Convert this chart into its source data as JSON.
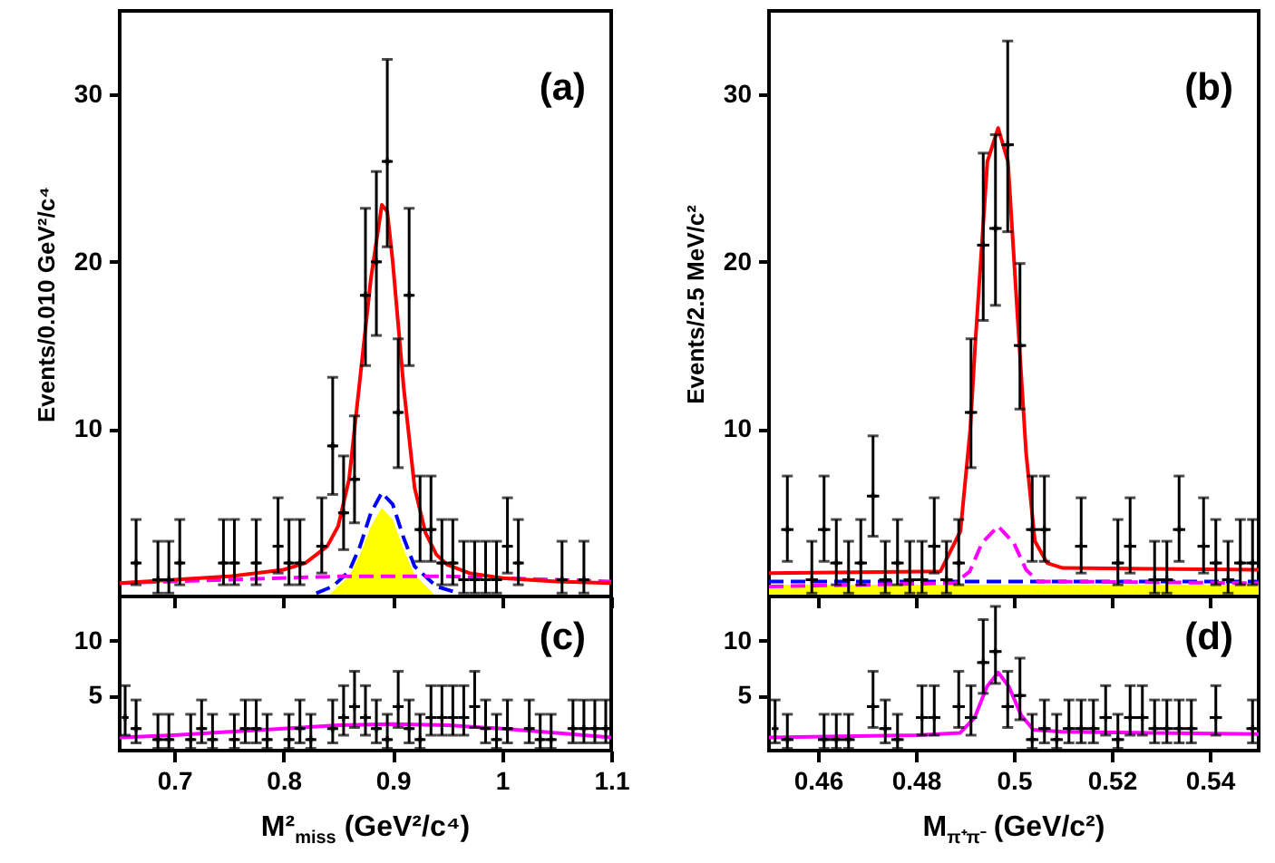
{
  "chart_data": [
    {
      "type": "scatter",
      "ylabel": "Events/0.010 GeV²/c⁴",
      "annotations": [
        "(a)"
      ],
      "xlim": [
        0.65,
        1.1
      ],
      "xticks": [
        0.7,
        0.8,
        0.9,
        1,
        1.1
      ],
      "ylim": [
        0,
        35
      ],
      "yticks": [
        10,
        20,
        30
      ],
      "tick_labels": "y",
      "series": [
        {
          "type": "area",
          "color": "#ffff00",
          "x": [
            0.84,
            0.86,
            0.87,
            0.88,
            0.89,
            0.9,
            0.91,
            0.92,
            0.94
          ],
          "values": [
            0,
            1.2,
            2.5,
            4.2,
            5.3,
            4.6,
            2.8,
            1.3,
            0
          ]
        },
        {
          "type": "line",
          "color": "#0000ff",
          "line_style": "dashed",
          "x": [
            0.83,
            0.845,
            0.86,
            0.87,
            0.88,
            0.89,
            0.9,
            0.91,
            0.92,
            0.94,
            0.96
          ],
          "values": [
            0.2,
            0.6,
            1.5,
            3,
            5,
            6.2,
            5.5,
            3.5,
            1.8,
            0.6,
            0.2
          ]
        },
        {
          "type": "line",
          "color": "#ff00ff",
          "line_style": "dashed",
          "x": [
            0.65,
            0.75,
            0.85,
            0.95,
            1.05,
            1.1
          ],
          "values": [
            0.8,
            1,
            1.2,
            1.2,
            1,
            0.9
          ]
        },
        {
          "type": "line",
          "color": "#ff0000",
          "line_style": "solid",
          "x": [
            0.65,
            0.7,
            0.75,
            0.8,
            0.82,
            0.84,
            0.85,
            0.86,
            0.87,
            0.88,
            0.89,
            0.895,
            0.9,
            0.91,
            0.92,
            0.93,
            0.94,
            0.95,
            0.97,
            1,
            1.05,
            1.1
          ],
          "values": [
            0.8,
            1,
            1.2,
            1.6,
            2,
            3,
            4.2,
            7,
            13,
            19,
            23.4,
            23,
            20,
            12.5,
            6.5,
            3.8,
            2.5,
            1.9,
            1.4,
            1.1,
            0.9,
            0.8
          ]
        },
        {
          "type": "scatter",
          "color": "#000000",
          "marker": "cross",
          "x": [
            0.665,
            0.685,
            0.695,
            0.705,
            0.745,
            0.755,
            0.775,
            0.795,
            0.805,
            0.815,
            0.835,
            0.845,
            0.855,
            0.865,
            0.875,
            0.885,
            0.895,
            0.905,
            0.915,
            0.925,
            0.935,
            0.945,
            0.955,
            0.965,
            0.975,
            0.985,
            0.995,
            1.005,
            1.015,
            1.055,
            1.075
          ],
          "values": [
            2,
            1,
            1,
            2,
            2,
            2,
            2,
            3,
            2,
            2,
            3,
            9,
            5,
            7,
            18,
            20,
            26,
            11,
            18,
            4,
            4,
            2,
            2,
            1,
            1,
            1,
            1,
            3,
            2,
            1,
            1
          ],
          "errors": [
            [
              0.7,
              4.6
            ],
            [
              0.2,
              3.3
            ],
            [
              0.2,
              3.3
            ],
            [
              0.7,
              4.6
            ],
            [
              0.7,
              4.6
            ],
            [
              0.7,
              4.6
            ],
            [
              0.7,
              4.6
            ],
            [
              1.4,
              5.9
            ],
            [
              0.7,
              4.6
            ],
            [
              0.7,
              4.6
            ],
            [
              1.4,
              5.9
            ],
            [
              6.1,
              13.1
            ],
            [
              2.8,
              8.4
            ],
            [
              4.4,
              10.8
            ],
            [
              13.8,
              23.2
            ],
            [
              15.6,
              25.4
            ],
            [
              20.9,
              32.1
            ],
            [
              7.7,
              15.4
            ],
            [
              13.8,
              23.2
            ],
            [
              2.1,
              7.2
            ],
            [
              2.1,
              7.2
            ],
            [
              0.7,
              4.6
            ],
            [
              0.7,
              4.6
            ],
            [
              0.2,
              3.3
            ],
            [
              0.2,
              3.3
            ],
            [
              0.2,
              3.3
            ],
            [
              0.2,
              3.3
            ],
            [
              1.4,
              5.9
            ],
            [
              0.7,
              4.6
            ],
            [
              0.2,
              3.3
            ],
            [
              0.2,
              3.3
            ]
          ],
          "xerrors": [
            0.005,
            0.005,
            0.005,
            0.005,
            0.005,
            0.005,
            0.005,
            0.005,
            0.005,
            0.005,
            0.005,
            0.005,
            0.005,
            0.005,
            0.005,
            0.005,
            0.005,
            0.005,
            0.005,
            0.005,
            0.005,
            0.005,
            0.005,
            0.005,
            0.005,
            0.005,
            0.005,
            0.005,
            0.005,
            0.005,
            0.005
          ]
        }
      ]
    },
    {
      "type": "scatter",
      "ylabel": "Events/2.5 MeV/c²",
      "annotations": [
        "(b)"
      ],
      "xlim": [
        0.45,
        0.55
      ],
      "xticks": [
        0.46,
        0.48,
        0.5,
        0.52,
        0.54
      ],
      "ylim": [
        0,
        35
      ],
      "yticks": [
        10,
        20,
        30
      ],
      "tick_labels": "y",
      "series": [
        {
          "type": "area",
          "color": "#ffff00",
          "x": [
            0.45,
            0.55
          ],
          "values": [
            0.7,
            0.7
          ]
        },
        {
          "type": "line",
          "color": "#0000ff",
          "line_style": "dashed",
          "x": [
            0.45,
            0.55
          ],
          "values": [
            0.9,
            0.9
          ]
        },
        {
          "type": "line",
          "color": "#ff00ff",
          "line_style": "dashed",
          "x": [
            0.45,
            0.488,
            0.491,
            0.4935,
            0.4968,
            0.5,
            0.5025,
            0.505,
            0.55
          ],
          "values": [
            0.6,
            0.8,
            1.5,
            3.2,
            4.2,
            3.2,
            1.6,
            0.9,
            0.8
          ]
        },
        {
          "type": "line",
          "color": "#ff0000",
          "line_style": "solid",
          "x": [
            0.45,
            0.485,
            0.4891,
            0.4911,
            0.4921,
            0.4946,
            0.4968,
            0.4988,
            0.5007,
            0.5025,
            0.5043,
            0.5068,
            0.51,
            0.55
          ],
          "values": [
            1.4,
            1.5,
            3.9,
            10,
            15,
            26,
            28,
            26,
            17,
            8.6,
            3.3,
            2,
            1.7,
            1.6
          ]
        },
        {
          "type": "scatter",
          "color": "#000000",
          "marker": "cross",
          "x": [
            0.45375,
            0.45875,
            0.46125,
            0.46375,
            0.46625,
            0.46875,
            0.47125,
            0.47375,
            0.47625,
            0.47875,
            0.48125,
            0.48375,
            0.48625,
            0.48875,
            0.49125,
            0.49375,
            0.49625,
            0.49875,
            0.50125,
            0.50375,
            0.50625,
            0.51375,
            0.52125,
            0.52375,
            0.52875,
            0.53125,
            0.53375,
            0.53875,
            0.54125,
            0.54375,
            0.54625,
            0.54875
          ],
          "values": [
            4,
            1,
            4,
            2,
            1,
            2,
            6,
            1,
            2,
            1,
            1,
            3,
            1,
            2,
            11,
            21,
            22,
            27,
            15,
            4,
            4,
            3,
            2,
            3,
            1,
            1,
            4,
            3,
            2,
            1,
            2,
            2
          ],
          "errors": [
            [
              2.1,
              7.2
            ],
            [
              0.2,
              3.3
            ],
            [
              2.1,
              7.2
            ],
            [
              0.7,
              4.6
            ],
            [
              0.2,
              3.3
            ],
            [
              0.7,
              4.6
            ],
            [
              3.6,
              9.6
            ],
            [
              0.2,
              3.3
            ],
            [
              0.7,
              4.6
            ],
            [
              0.2,
              3.3
            ],
            [
              0.2,
              3.3
            ],
            [
              1.4,
              5.9
            ],
            [
              0.2,
              3.3
            ],
            [
              0.7,
              4.6
            ],
            [
              7.7,
              15.4
            ],
            [
              16.5,
              26.5
            ],
            [
              17.4,
              27.6
            ],
            [
              21.8,
              33.2
            ],
            [
              11.2,
              19.9
            ],
            [
              2.1,
              7.2
            ],
            [
              2.1,
              7.2
            ],
            [
              1.4,
              5.9
            ],
            [
              0.7,
              4.6
            ],
            [
              1.4,
              5.9
            ],
            [
              0.2,
              3.3
            ],
            [
              0.2,
              3.3
            ],
            [
              2.1,
              7.2
            ],
            [
              1.4,
              5.9
            ],
            [
              0.7,
              4.6
            ],
            [
              0.2,
              3.3
            ],
            [
              0.7,
              4.6
            ],
            [
              0.7,
              4.6
            ]
          ],
          "xerrors": [
            0.00125,
            0.00125,
            0.00125,
            0.00125,
            0.00125,
            0.00125,
            0.00125,
            0.00125,
            0.00125,
            0.00125,
            0.00125,
            0.00125,
            0.00125,
            0.00125,
            0.00125,
            0.00125,
            0.00125,
            0.00125,
            0.00125,
            0.00125,
            0.00125,
            0.00125,
            0.00125,
            0.00125,
            0.00125,
            0.00125,
            0.00125,
            0.00125,
            0.00125,
            0.00125,
            0.00125,
            0.00125
          ]
        }
      ]
    },
    {
      "type": "scatter",
      "xlabel": "M²$_{miss}$ (GeV²/c⁴)",
      "annotations": [
        "(c)"
      ],
      "xlim": [
        0.65,
        1.1
      ],
      "xticks": [
        0.7,
        0.8,
        0.9,
        1,
        1.1
      ],
      "ylim": [
        0,
        14
      ],
      "yticks": [
        5,
        10
      ],
      "series": [
        {
          "type": "line",
          "color": "#ff00ff",
          "line_style": "solid",
          "x": [
            0.65,
            0.7,
            0.75,
            0.8,
            0.85,
            0.9,
            0.95,
            1,
            1.05,
            1.1
          ],
          "values": [
            1.2,
            1.4,
            1.7,
            2,
            2.3,
            2.4,
            2.3,
            2,
            1.6,
            1.2
          ]
        },
        {
          "type": "scatter",
          "color": "#000000",
          "marker": "cross",
          "x": [
            0.655,
            0.665,
            0.685,
            0.695,
            0.715,
            0.725,
            0.735,
            0.755,
            0.765,
            0.775,
            0.785,
            0.805,
            0.815,
            0.825,
            0.845,
            0.855,
            0.865,
            0.875,
            0.885,
            0.895,
            0.905,
            0.915,
            0.925,
            0.935,
            0.945,
            0.955,
            0.965,
            0.975,
            0.985,
            0.995,
            1.005,
            1.025,
            1.035,
            1.045,
            1.065,
            1.075,
            1.085,
            1.095
          ],
          "values": [
            3,
            2,
            1,
            1,
            1,
            2,
            1,
            1,
            2,
            2,
            1,
            1,
            2,
            1,
            2,
            3,
            4,
            3,
            2,
            1,
            4,
            2,
            1,
            3,
            3,
            3,
            3,
            4,
            2,
            1,
            2,
            2,
            1,
            1,
            2,
            2,
            2,
            2
          ],
          "errors": [
            [
              1.4,
              5.9
            ],
            [
              0.7,
              4.6
            ],
            [
              0.2,
              3.3
            ],
            [
              0.2,
              3.3
            ],
            [
              0.2,
              3.3
            ],
            [
              0.7,
              4.6
            ],
            [
              0.2,
              3.3
            ],
            [
              0.2,
              3.3
            ],
            [
              0.7,
              4.6
            ],
            [
              0.7,
              4.6
            ],
            [
              0.2,
              3.3
            ],
            [
              0.2,
              3.3
            ],
            [
              0.7,
              4.6
            ],
            [
              0.2,
              3.3
            ],
            [
              0.7,
              4.6
            ],
            [
              1.4,
              5.9
            ],
            [
              2.1,
              7.2
            ],
            [
              1.4,
              5.9
            ],
            [
              0.7,
              4.6
            ],
            [
              0.2,
              3.3
            ],
            [
              2.1,
              7.2
            ],
            [
              0.7,
              4.6
            ],
            [
              0.2,
              3.3
            ],
            [
              1.4,
              5.9
            ],
            [
              1.4,
              5.9
            ],
            [
              1.4,
              5.9
            ],
            [
              1.4,
              5.9
            ],
            [
              2.1,
              7.2
            ],
            [
              0.7,
              4.6
            ],
            [
              0.2,
              3.3
            ],
            [
              0.7,
              4.6
            ],
            [
              0.7,
              4.6
            ],
            [
              0.2,
              3.3
            ],
            [
              0.2,
              3.3
            ],
            [
              0.7,
              4.6
            ],
            [
              0.7,
              4.6
            ],
            [
              0.7,
              4.6
            ],
            [
              0.7,
              4.6
            ]
          ],
          "xerrors": [
            null,
            0.005,
            0.005,
            0.005,
            0.005,
            0.005,
            0.005,
            0.005,
            0.005,
            0.005,
            0.005,
            0.005,
            0.005,
            0.005,
            0.005,
            0.005,
            0.005,
            0.005,
            0.005,
            0.005,
            0.005,
            0.005,
            0.005,
            0.005,
            0.005,
            0.005,
            0.005,
            0.005,
            0.005,
            0.005,
            0.005,
            0.005,
            0.005,
            0.005,
            0.005,
            0.005,
            0.005,
            0.005
          ]
        }
      ]
    },
    {
      "type": "scatter",
      "xlabel": "M$_{π⁺π⁻}$ (GeV/c²)",
      "annotations": [
        "(d)"
      ],
      "xlim": [
        0.45,
        0.55
      ],
      "xticks": [
        0.46,
        0.48,
        0.5,
        0.52,
        0.54
      ],
      "ylim": [
        0,
        14
      ],
      "yticks": [
        5,
        10
      ],
      "series": [
        {
          "type": "line",
          "color": "#ff00ff",
          "line_style": "solid",
          "x": [
            0.45,
            0.48,
            0.489,
            0.492,
            0.4945,
            0.4968,
            0.499,
            0.5015,
            0.504,
            0.51,
            0.55
          ],
          "values": [
            1.2,
            1.4,
            1.6,
            3,
            5.8,
            7.1,
            5.8,
            3.2,
            1.9,
            1.7,
            1.5
          ]
        },
        {
          "type": "scatter",
          "color": "#000000",
          "marker": "cross",
          "x": [
            0.45125,
            0.45375,
            0.46125,
            0.46375,
            0.46625,
            0.47125,
            0.47375,
            0.47625,
            0.48125,
            0.48375,
            0.48875,
            0.49125,
            0.49375,
            0.49625,
            0.49875,
            0.50125,
            0.50375,
            0.50625,
            0.50875,
            0.51125,
            0.51375,
            0.51625,
            0.51875,
            0.52125,
            0.52375,
            0.52625,
            0.52875,
            0.53125,
            0.53375,
            0.53625,
            0.54125,
            0.54875
          ],
          "values": [
            2,
            1,
            1,
            1,
            1,
            4,
            2,
            1,
            3,
            3,
            4,
            3,
            8,
            9,
            4,
            5,
            1,
            2,
            1,
            2,
            2,
            2,
            3,
            1,
            3,
            3,
            2,
            2,
            2,
            2,
            3,
            2
          ],
          "errors": [
            [
              0.7,
              4.6
            ],
            [
              0.2,
              3.3
            ],
            [
              0.2,
              3.3
            ],
            [
              0.2,
              3.3
            ],
            [
              0.2,
              3.3
            ],
            [
              2.1,
              7.2
            ],
            [
              0.7,
              4.6
            ],
            [
              0.2,
              3.3
            ],
            [
              1.4,
              5.9
            ],
            [
              1.4,
              5.9
            ],
            [
              2.1,
              7.2
            ],
            [
              1.4,
              5.9
            ],
            [
              5.2,
              11.9
            ],
            [
              6.1,
              13.1
            ],
            [
              2.1,
              7.2
            ],
            [
              2.8,
              8.4
            ],
            [
              0.2,
              3.3
            ],
            [
              0.7,
              4.6
            ],
            [
              0.2,
              3.3
            ],
            [
              0.7,
              4.6
            ],
            [
              0.7,
              4.6
            ],
            [
              0.7,
              4.6
            ],
            [
              1.4,
              5.9
            ],
            [
              0.2,
              3.3
            ],
            [
              1.4,
              5.9
            ],
            [
              1.4,
              5.9
            ],
            [
              0.7,
              4.6
            ],
            [
              0.7,
              4.6
            ],
            [
              0.7,
              4.6
            ],
            [
              0.7,
              4.6
            ],
            [
              1.4,
              5.9
            ],
            [
              0.7,
              4.6
            ]
          ],
          "xerrors": [
            null,
            0.00125,
            0.00125,
            0.00125,
            0.00125,
            0.00125,
            0.00125,
            0.00125,
            0.00125,
            0.00125,
            0.00125,
            0.00125,
            0.00125,
            0.00125,
            0.00125,
            0.00125,
            0.00125,
            0.00125,
            0.00125,
            0.00125,
            0.00125,
            0.00125,
            0.00125,
            0.00125,
            0.00125,
            0.00125,
            0.00125,
            0.00125,
            0.00125,
            0.00125,
            0.00125,
            0.00125
          ]
        }
      ]
    }
  ]
}
